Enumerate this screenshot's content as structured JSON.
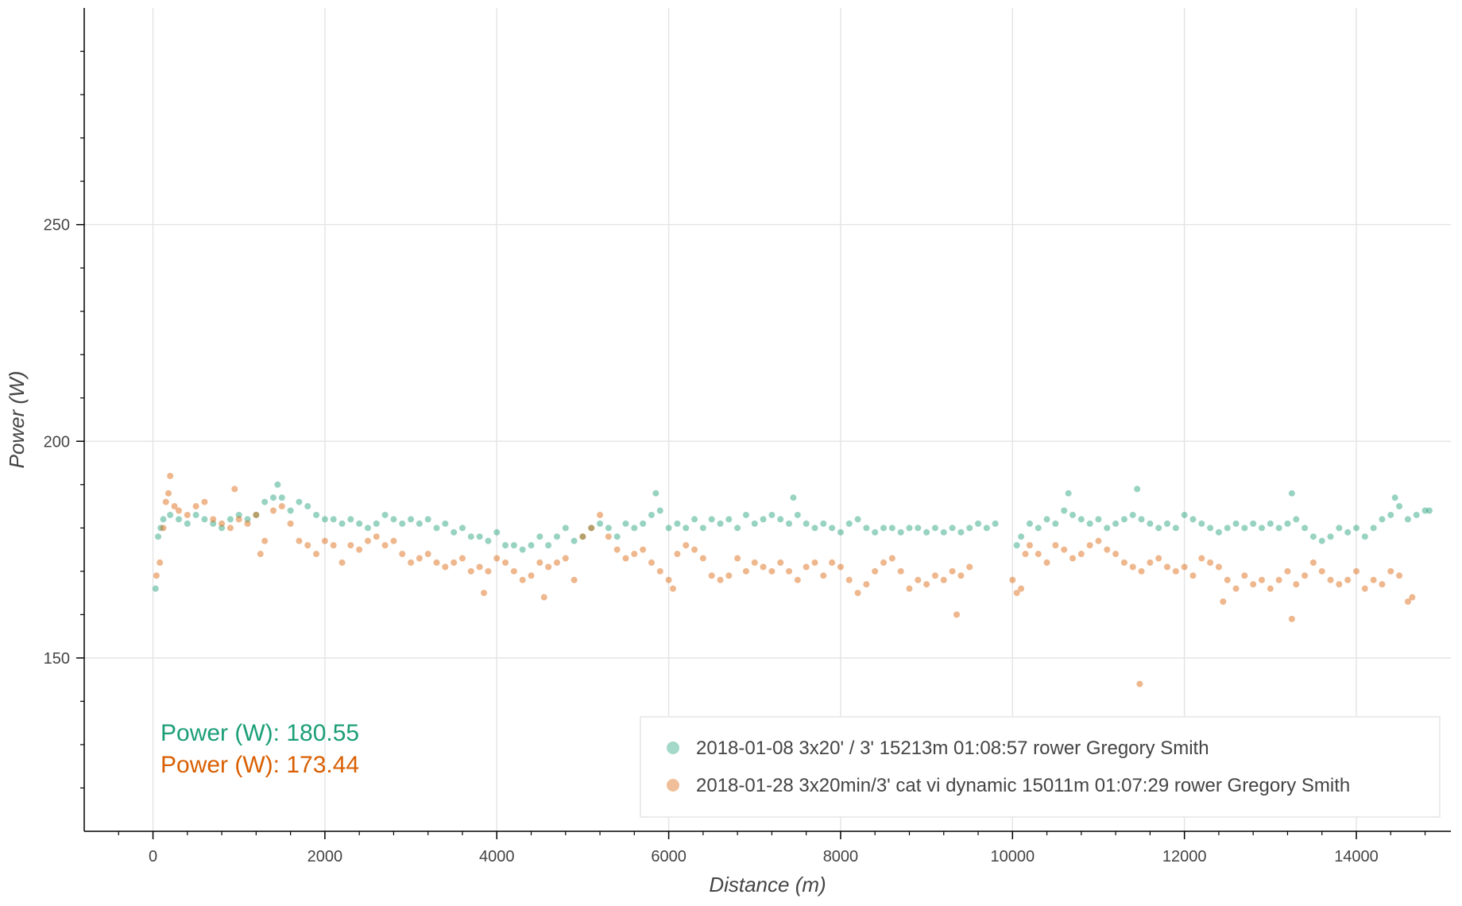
{
  "chart_data": {
    "type": "scatter",
    "xlabel": "Distance (m)",
    "ylabel": "Power (W)",
    "xlim": [
      -800,
      15100
    ],
    "ylim": [
      110,
      300
    ],
    "x_ticks": [
      0,
      2000,
      4000,
      6000,
      8000,
      10000,
      12000,
      14000
    ],
    "x_tick_labels": [
      "0",
      "2000",
      "4000",
      "6000",
      "8000",
      "10000",
      "12000",
      "14000"
    ],
    "y_ticks": [
      150,
      200,
      250
    ],
    "y_tick_labels": [
      "150",
      "200",
      "250"
    ],
    "grid": true,
    "legend_position": "bottom-right",
    "series": [
      {
        "name": "2018-01-08 3x20' / 3' 15213m 01:08:57 rower Gregory Smith",
        "color": "#1b9e77",
        "average_label": "Power (W): 180.55",
        "points": [
          [
            30,
            166
          ],
          [
            60,
            178
          ],
          [
            90,
            180
          ],
          [
            120,
            182
          ],
          [
            200,
            183
          ],
          [
            300,
            182
          ],
          [
            400,
            181
          ],
          [
            500,
            183
          ],
          [
            600,
            182
          ],
          [
            700,
            181
          ],
          [
            800,
            180
          ],
          [
            900,
            182
          ],
          [
            1000,
            183
          ],
          [
            1100,
            182
          ],
          [
            1200,
            183
          ],
          [
            1300,
            186
          ],
          [
            1400,
            187
          ],
          [
            1450,
            190
          ],
          [
            1500,
            187
          ],
          [
            1600,
            184
          ],
          [
            1700,
            186
          ],
          [
            1800,
            185
          ],
          [
            1900,
            183
          ],
          [
            2000,
            182
          ],
          [
            2100,
            182
          ],
          [
            2200,
            181
          ],
          [
            2300,
            182
          ],
          [
            2400,
            181
          ],
          [
            2500,
            180
          ],
          [
            2600,
            181
          ],
          [
            2700,
            183
          ],
          [
            2800,
            182
          ],
          [
            2900,
            181
          ],
          [
            3000,
            182
          ],
          [
            3100,
            181
          ],
          [
            3200,
            182
          ],
          [
            3300,
            180
          ],
          [
            3400,
            181
          ],
          [
            3500,
            179
          ],
          [
            3600,
            180
          ],
          [
            3700,
            178
          ],
          [
            3800,
            178
          ],
          [
            3900,
            177
          ],
          [
            4000,
            179
          ],
          [
            4100,
            176
          ],
          [
            4200,
            176
          ],
          [
            4300,
            175
          ],
          [
            4400,
            176
          ],
          [
            4500,
            178
          ],
          [
            4600,
            176
          ],
          [
            4700,
            178
          ],
          [
            4800,
            180
          ],
          [
            4900,
            177
          ],
          [
            5000,
            178
          ],
          [
            5100,
            180
          ],
          [
            5200,
            181
          ],
          [
            5300,
            180
          ],
          [
            5400,
            178
          ],
          [
            5500,
            181
          ],
          [
            5600,
            180
          ],
          [
            5700,
            181
          ],
          [
            5800,
            183
          ],
          [
            5850,
            188
          ],
          [
            5900,
            184
          ],
          [
            6000,
            180
          ],
          [
            6100,
            181
          ],
          [
            6200,
            180
          ],
          [
            6300,
            182
          ],
          [
            6400,
            180
          ],
          [
            6500,
            182
          ],
          [
            6600,
            181
          ],
          [
            6700,
            182
          ],
          [
            6800,
            180
          ],
          [
            6900,
            183
          ],
          [
            7000,
            181
          ],
          [
            7100,
            182
          ],
          [
            7200,
            183
          ],
          [
            7300,
            182
          ],
          [
            7400,
            181
          ],
          [
            7450,
            187
          ],
          [
            7500,
            183
          ],
          [
            7600,
            181
          ],
          [
            7700,
            180
          ],
          [
            7800,
            181
          ],
          [
            7900,
            180
          ],
          [
            8000,
            179
          ],
          [
            8100,
            181
          ],
          [
            8200,
            182
          ],
          [
            8300,
            180
          ],
          [
            8400,
            179
          ],
          [
            8500,
            180
          ],
          [
            8600,
            180
          ],
          [
            8700,
            179
          ],
          [
            8800,
            180
          ],
          [
            8900,
            180
          ],
          [
            9000,
            179
          ],
          [
            9100,
            180
          ],
          [
            9200,
            179
          ],
          [
            9300,
            180
          ],
          [
            9400,
            179
          ],
          [
            9500,
            180
          ],
          [
            9600,
            181
          ],
          [
            9700,
            180
          ],
          [
            9800,
            181
          ],
          [
            10050,
            176
          ],
          [
            10100,
            178
          ],
          [
            10200,
            181
          ],
          [
            10300,
            180
          ],
          [
            10400,
            182
          ],
          [
            10500,
            181
          ],
          [
            10600,
            184
          ],
          [
            10650,
            188
          ],
          [
            10700,
            183
          ],
          [
            10800,
            182
          ],
          [
            10900,
            181
          ],
          [
            11000,
            182
          ],
          [
            11100,
            180
          ],
          [
            11200,
            181
          ],
          [
            11300,
            182
          ],
          [
            11400,
            183
          ],
          [
            11450,
            189
          ],
          [
            11500,
            182
          ],
          [
            11600,
            181
          ],
          [
            11700,
            180
          ],
          [
            11800,
            181
          ],
          [
            11900,
            180
          ],
          [
            12000,
            183
          ],
          [
            12100,
            182
          ],
          [
            12200,
            181
          ],
          [
            12300,
            180
          ],
          [
            12400,
            179
          ],
          [
            12500,
            180
          ],
          [
            12600,
            181
          ],
          [
            12700,
            180
          ],
          [
            12800,
            181
          ],
          [
            12900,
            180
          ],
          [
            13000,
            181
          ],
          [
            13100,
            180
          ],
          [
            13200,
            181
          ],
          [
            13250,
            188
          ],
          [
            13300,
            182
          ],
          [
            13400,
            180
          ],
          [
            13500,
            178
          ],
          [
            13600,
            177
          ],
          [
            13700,
            178
          ],
          [
            13800,
            180
          ],
          [
            13900,
            179
          ],
          [
            14000,
            180
          ],
          [
            14100,
            178
          ],
          [
            14200,
            180
          ],
          [
            14300,
            182
          ],
          [
            14400,
            183
          ],
          [
            14450,
            187
          ],
          [
            14500,
            185
          ],
          [
            14600,
            182
          ],
          [
            14700,
            183
          ],
          [
            14800,
            184
          ],
          [
            14850,
            184
          ]
        ]
      },
      {
        "name": "2018-01-28 3x20min/3' cat vi dynamic 15011m 01:07:29 rower Gregory Smith",
        "color": "#d95f02",
        "average_label": "Power (W): 173.44",
        "points": [
          [
            40,
            169
          ],
          [
            80,
            172
          ],
          [
            120,
            180
          ],
          [
            150,
            186
          ],
          [
            180,
            188
          ],
          [
            200,
            192
          ],
          [
            250,
            185
          ],
          [
            300,
            184
          ],
          [
            400,
            183
          ],
          [
            500,
            185
          ],
          [
            600,
            186
          ],
          [
            700,
            182
          ],
          [
            800,
            181
          ],
          [
            900,
            180
          ],
          [
            950,
            189
          ],
          [
            1000,
            182
          ],
          [
            1100,
            181
          ],
          [
            1200,
            183
          ],
          [
            1250,
            174
          ],
          [
            1300,
            177
          ],
          [
            1400,
            184
          ],
          [
            1500,
            185
          ],
          [
            1600,
            181
          ],
          [
            1700,
            177
          ],
          [
            1800,
            176
          ],
          [
            1900,
            174
          ],
          [
            2000,
            177
          ],
          [
            2100,
            176
          ],
          [
            2200,
            172
          ],
          [
            2300,
            176
          ],
          [
            2400,
            175
          ],
          [
            2500,
            177
          ],
          [
            2600,
            178
          ],
          [
            2700,
            176
          ],
          [
            2800,
            177
          ],
          [
            2900,
            174
          ],
          [
            3000,
            172
          ],
          [
            3100,
            173
          ],
          [
            3200,
            174
          ],
          [
            3300,
            172
          ],
          [
            3400,
            171
          ],
          [
            3500,
            172
          ],
          [
            3600,
            173
          ],
          [
            3700,
            170
          ],
          [
            3800,
            171
          ],
          [
            3850,
            165
          ],
          [
            3900,
            170
          ],
          [
            4000,
            173
          ],
          [
            4100,
            172
          ],
          [
            4200,
            170
          ],
          [
            4300,
            168
          ],
          [
            4400,
            169
          ],
          [
            4500,
            172
          ],
          [
            4550,
            164
          ],
          [
            4600,
            171
          ],
          [
            4700,
            172
          ],
          [
            4800,
            173
          ],
          [
            4900,
            168
          ],
          [
            5000,
            178
          ],
          [
            5100,
            180
          ],
          [
            5200,
            183
          ],
          [
            5300,
            178
          ],
          [
            5400,
            175
          ],
          [
            5500,
            173
          ],
          [
            5600,
            174
          ],
          [
            5700,
            175
          ],
          [
            5800,
            172
          ],
          [
            5900,
            170
          ],
          [
            6000,
            168
          ],
          [
            6050,
            166
          ],
          [
            6100,
            174
          ],
          [
            6200,
            176
          ],
          [
            6300,
            175
          ],
          [
            6400,
            173
          ],
          [
            6500,
            169
          ],
          [
            6600,
            168
          ],
          [
            6700,
            169
          ],
          [
            6800,
            173
          ],
          [
            6900,
            170
          ],
          [
            7000,
            172
          ],
          [
            7100,
            171
          ],
          [
            7200,
            170
          ],
          [
            7300,
            172
          ],
          [
            7400,
            170
          ],
          [
            7500,
            168
          ],
          [
            7600,
            171
          ],
          [
            7700,
            172
          ],
          [
            7800,
            169
          ],
          [
            7900,
            172
          ],
          [
            8000,
            171
          ],
          [
            8100,
            168
          ],
          [
            8200,
            165
          ],
          [
            8300,
            167
          ],
          [
            8400,
            170
          ],
          [
            8500,
            172
          ],
          [
            8600,
            173
          ],
          [
            8700,
            170
          ],
          [
            8800,
            166
          ],
          [
            8900,
            168
          ],
          [
            9000,
            167
          ],
          [
            9100,
            169
          ],
          [
            9200,
            168
          ],
          [
            9300,
            170
          ],
          [
            9350,
            160
          ],
          [
            9400,
            169
          ],
          [
            9500,
            171
          ],
          [
            10000,
            168
          ],
          [
            10050,
            165
          ],
          [
            10100,
            166
          ],
          [
            10150,
            174
          ],
          [
            10200,
            176
          ],
          [
            10300,
            174
          ],
          [
            10400,
            172
          ],
          [
            10500,
            176
          ],
          [
            10600,
            175
          ],
          [
            10700,
            173
          ],
          [
            10800,
            174
          ],
          [
            10900,
            176
          ],
          [
            11000,
            177
          ],
          [
            11100,
            175
          ],
          [
            11200,
            174
          ],
          [
            11300,
            172
          ],
          [
            11400,
            171
          ],
          [
            11480,
            144
          ],
          [
            11500,
            170
          ],
          [
            11600,
            172
          ],
          [
            11700,
            173
          ],
          [
            11800,
            171
          ],
          [
            11900,
            170
          ],
          [
            12000,
            171
          ],
          [
            12100,
            169
          ],
          [
            12200,
            173
          ],
          [
            12300,
            172
          ],
          [
            12400,
            171
          ],
          [
            12450,
            163
          ],
          [
            12500,
            168
          ],
          [
            12600,
            166
          ],
          [
            12700,
            169
          ],
          [
            12800,
            167
          ],
          [
            12900,
            168
          ],
          [
            13000,
            166
          ],
          [
            13100,
            168
          ],
          [
            13200,
            170
          ],
          [
            13250,
            159
          ],
          [
            13300,
            167
          ],
          [
            13400,
            169
          ],
          [
            13500,
            172
          ],
          [
            13600,
            170
          ],
          [
            13700,
            168
          ],
          [
            13800,
            167
          ],
          [
            13900,
            168
          ],
          [
            14000,
            170
          ],
          [
            14100,
            166
          ],
          [
            14200,
            168
          ],
          [
            14300,
            167
          ],
          [
            14400,
            170
          ],
          [
            14500,
            169
          ],
          [
            14600,
            163
          ],
          [
            14650,
            164
          ]
        ]
      }
    ]
  }
}
